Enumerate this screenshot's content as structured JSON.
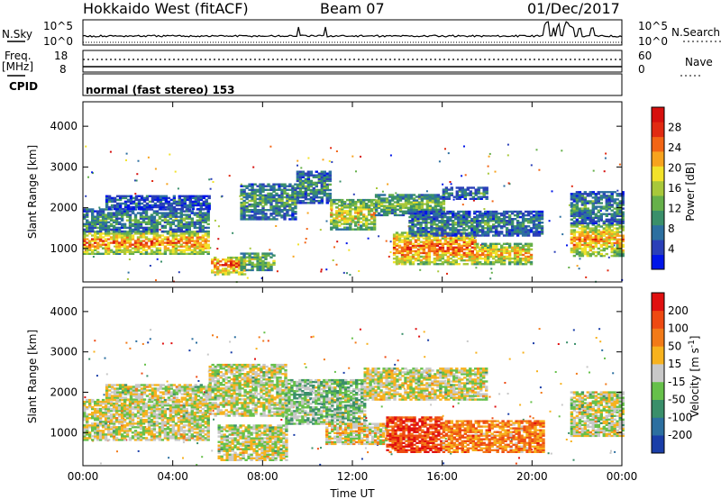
{
  "header": {
    "station": "Hokkaido West (fitACF)",
    "beam": "Beam 07",
    "date": "01/Dec/2017"
  },
  "status_panels": {
    "nsky_label": "N.Sky",
    "nsearch_label": "N.Search",
    "freq_label_top": "Freq.",
    "freq_label_unit": "[MHz]",
    "nave_label": "Nave",
    "cpid_label": "CPID",
    "noise_ticks_left": [
      "10^5",
      "10^0"
    ],
    "noise_ticks_right": [
      "10^5",
      "10^0"
    ],
    "freq_ticks_left": [
      "18",
      "8"
    ],
    "nave_ticks_right": [
      "60",
      "0"
    ],
    "cpid_text": "normal (fast stereo) 153"
  },
  "chart_data": [
    {
      "type": "heatmap",
      "title": "",
      "xlabel": "",
      "ylabel": "Slant Range [km]",
      "x_tick_labels": [
        "00:00",
        "04:00",
        "08:00",
        "12:00",
        "16:00",
        "20:00",
        "00:00"
      ],
      "y_tick_labels": [
        "1000",
        "2000",
        "3000",
        "4000"
      ],
      "xlim_hours": [
        0,
        24
      ],
      "ylim_km": [
        180,
        4600
      ],
      "colorbar": {
        "label": "Power [dB]",
        "ticks": [
          "28",
          "24",
          "20",
          "16",
          "12",
          "8",
          "4"
        ],
        "colors": [
          "#0015e8",
          "#2a3fb8",
          "#2c6fa0",
          "#3a8f6a",
          "#66b04a",
          "#a8c83a",
          "#f2e22a",
          "#f7a31e",
          "#f26515",
          "#e12a12",
          "#d6100e"
        ]
      },
      "regions": [
        {
          "t0": 0.0,
          "t1": 5.6,
          "r0": 850,
          "r1": 1400,
          "v": 0.78
        },
        {
          "t0": 0.0,
          "t1": 5.6,
          "r0": 1400,
          "r1": 1950,
          "v": 0.35
        },
        {
          "t0": 1.0,
          "t1": 5.6,
          "r0": 1950,
          "r1": 2300,
          "v": 0.2
        },
        {
          "t0": 5.7,
          "t1": 7.2,
          "r0": 350,
          "r1": 800,
          "v": 0.85
        },
        {
          "t0": 7.0,
          "t1": 8.5,
          "r0": 450,
          "r1": 900,
          "v": 0.5
        },
        {
          "t0": 7.0,
          "t1": 9.5,
          "r0": 1700,
          "r1": 2600,
          "v": 0.35
        },
        {
          "t0": 9.5,
          "t1": 11.0,
          "r0": 2100,
          "r1": 2900,
          "v": 0.3
        },
        {
          "t0": 11.0,
          "t1": 13.0,
          "r0": 1450,
          "r1": 2200,
          "v": 0.6
        },
        {
          "t0": 13.0,
          "t1": 16.0,
          "r0": 1800,
          "r1": 2300,
          "v": 0.45
        },
        {
          "t0": 16.0,
          "t1": 18.0,
          "r0": 2200,
          "r1": 2500,
          "v": 0.3
        },
        {
          "t0": 13.8,
          "t1": 17.5,
          "r0": 600,
          "r1": 1400,
          "v": 0.82
        },
        {
          "t0": 17.5,
          "t1": 20.0,
          "r0": 600,
          "r1": 1100,
          "v": 0.7
        },
        {
          "t0": 14.5,
          "t1": 20.5,
          "r0": 1300,
          "r1": 1900,
          "v": 0.3
        },
        {
          "t0": 21.7,
          "t1": 24.0,
          "r0": 800,
          "r1": 1600,
          "v": 0.72
        },
        {
          "t0": 21.7,
          "t1": 24.0,
          "r0": 1600,
          "r1": 2400,
          "v": 0.3
        }
      ]
    },
    {
      "type": "heatmap",
      "title": "",
      "xlabel": "Time UT",
      "ylabel": "Slant Range [km]",
      "x_tick_labels": [
        "00:00",
        "04:00",
        "08:00",
        "12:00",
        "16:00",
        "20:00",
        "00:00"
      ],
      "y_tick_labels": [
        "1000",
        "2000",
        "3000",
        "4000"
      ],
      "xlim_hours": [
        0,
        24
      ],
      "ylim_km": [
        180,
        4600
      ],
      "colorbar": {
        "label": "Velocity [m s^-1]",
        "ticks": [
          "200",
          "100",
          "50",
          "15",
          "-15",
          "-50",
          "-100",
          "-200"
        ],
        "colors": [
          "#1a3ea8",
          "#2c6fa0",
          "#3a8f6a",
          "#66c04a",
          "#c8c8c8",
          "#f7b21e",
          "#f27a18",
          "#ee4a12",
          "#e01010"
        ]
      },
      "regions": [
        {
          "t0": 0.0,
          "t1": 5.6,
          "r0": 800,
          "r1": 1800,
          "v": 0.5
        },
        {
          "t0": 1.0,
          "t1": 5.6,
          "r0": 1800,
          "r1": 2200,
          "v": 0.5
        },
        {
          "t0": 5.6,
          "t1": 9.0,
          "r0": 1400,
          "r1": 2700,
          "v": 0.5
        },
        {
          "t0": 6.0,
          "t1": 9.0,
          "r0": 300,
          "r1": 1200,
          "v": 0.5
        },
        {
          "t0": 9.0,
          "t1": 12.5,
          "r0": 1200,
          "r1": 2300,
          "v": 0.4
        },
        {
          "t0": 10.8,
          "t1": 13.5,
          "r0": 700,
          "r1": 1200,
          "v": 0.55
        },
        {
          "t0": 13.5,
          "t1": 16.0,
          "r0": 500,
          "r1": 1400,
          "v": 0.85
        },
        {
          "t0": 16.0,
          "t1": 20.5,
          "r0": 500,
          "r1": 1300,
          "v": 0.72
        },
        {
          "t0": 12.5,
          "t1": 18.0,
          "r0": 1800,
          "r1": 2600,
          "v": 0.5
        },
        {
          "t0": 21.7,
          "t1": 24.0,
          "r0": 900,
          "r1": 2000,
          "v": 0.5
        }
      ]
    }
  ]
}
